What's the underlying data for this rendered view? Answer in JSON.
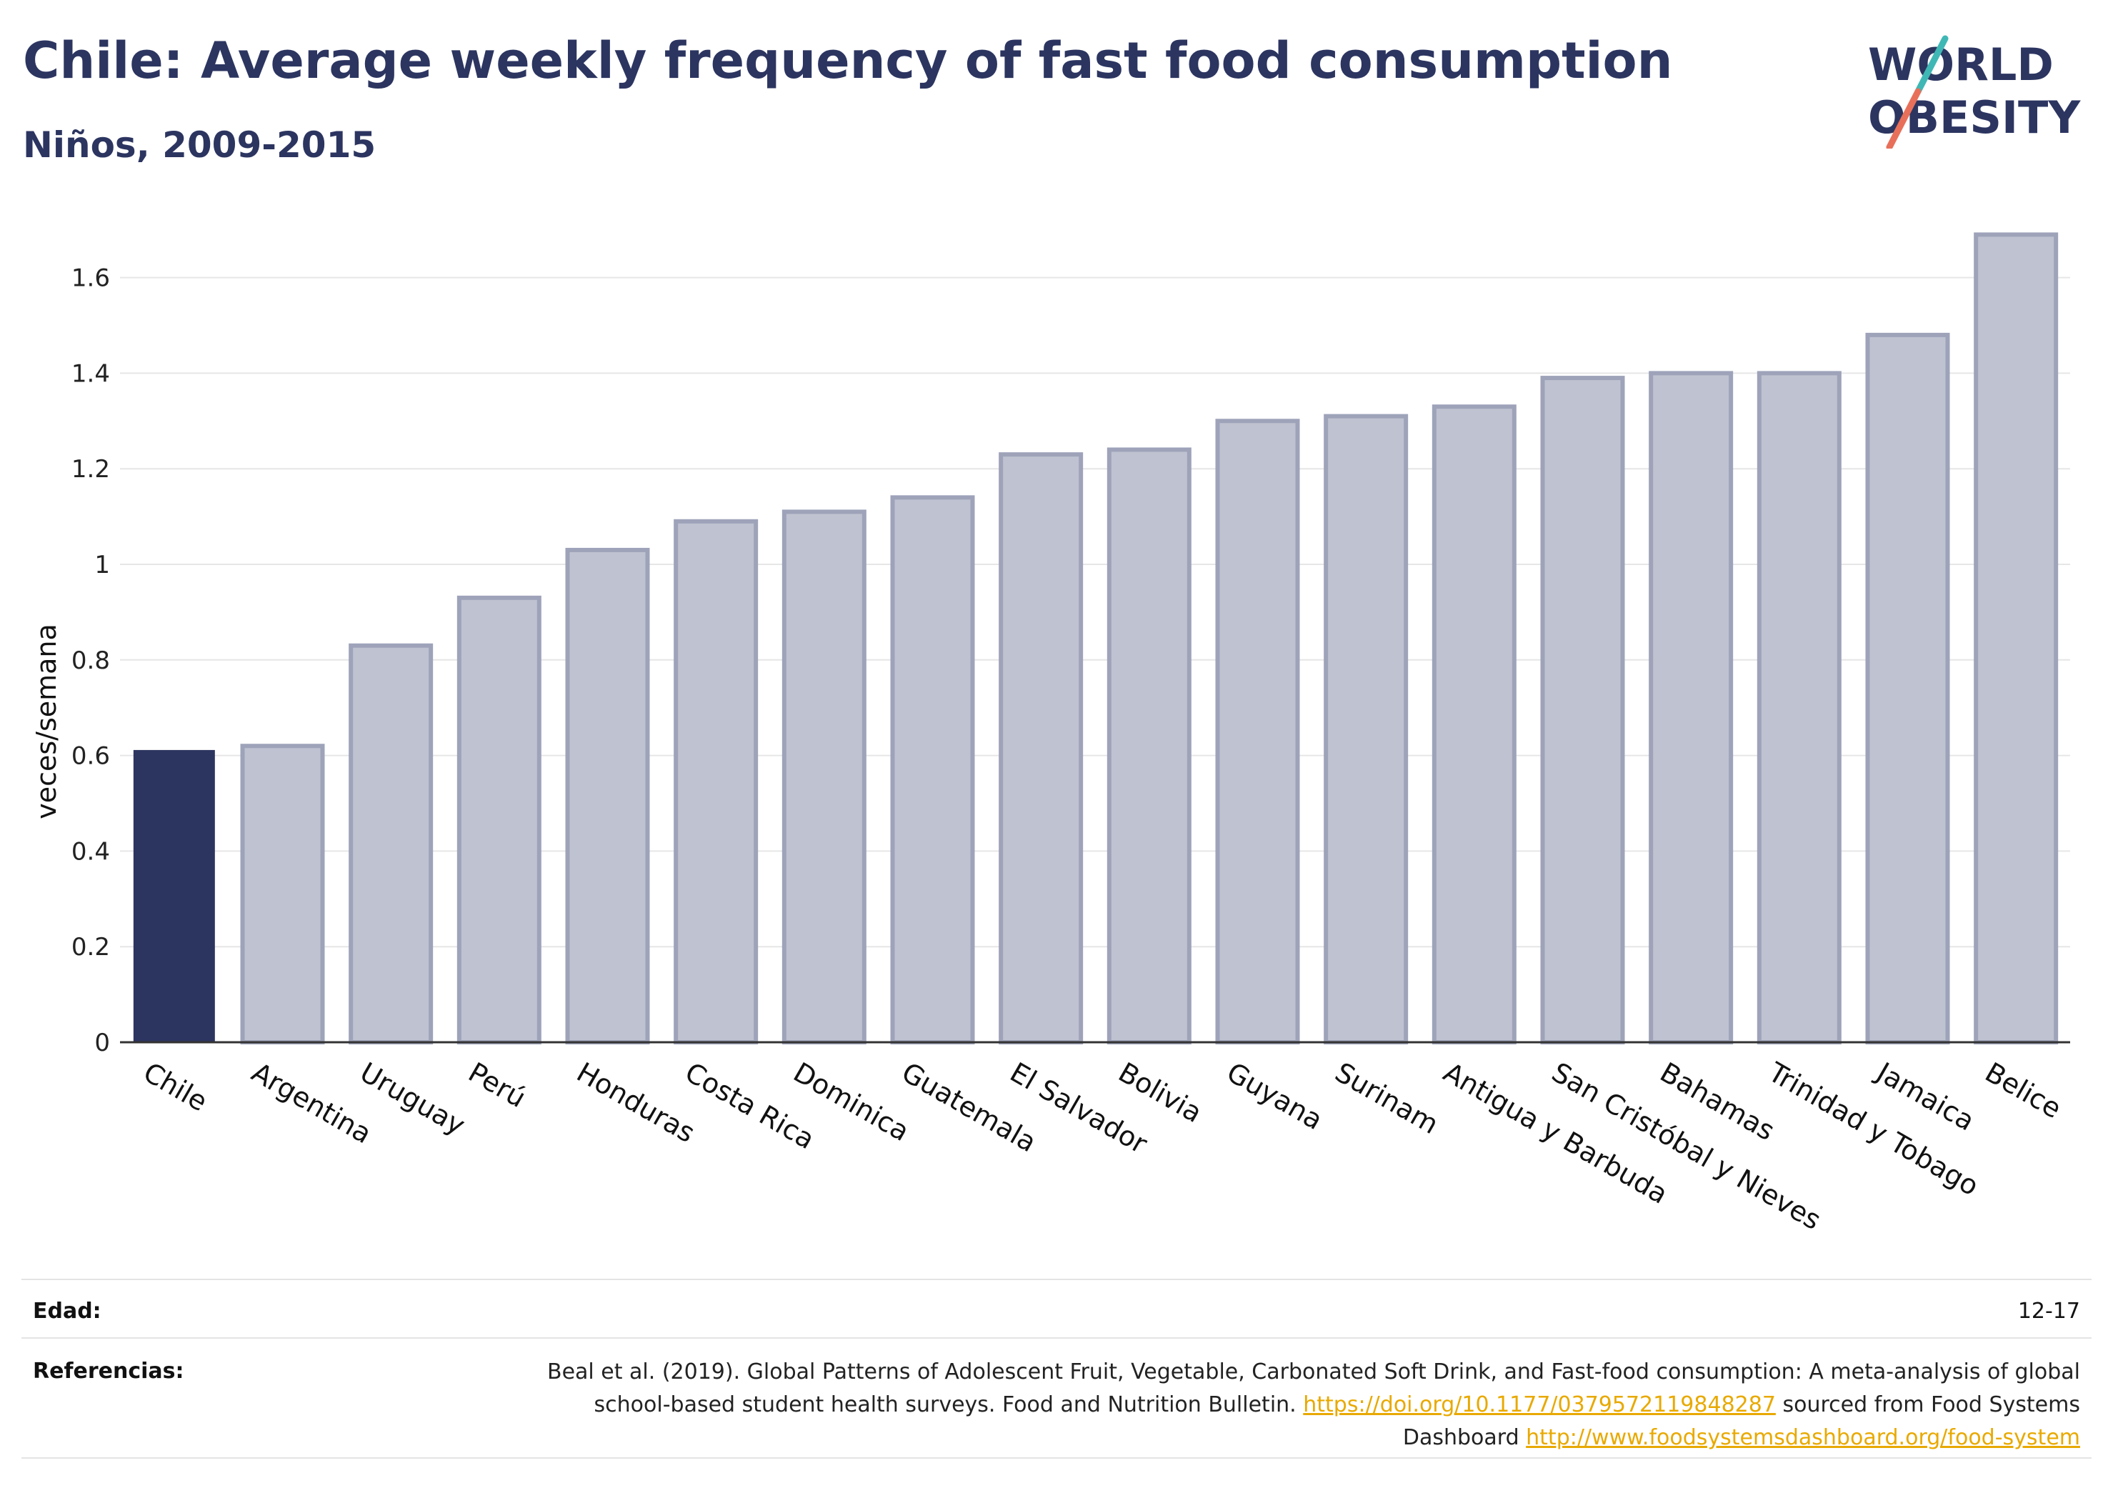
{
  "header": {
    "title": "Chile: Average weekly frequency of fast food consumption",
    "subtitle": "Niños, 2009-2015"
  },
  "logo": {
    "line1": "WORLD",
    "line2": "OBESITY",
    "accent_teal": "#3fb8b5",
    "accent_coral": "#e8705a"
  },
  "colors": {
    "highlight": "#2c3560",
    "bar_fill": "#bfc2d0",
    "bar_stroke": "#9ea3ba",
    "grid": "#e6e6e6"
  },
  "chart_data": {
    "type": "bar",
    "categories": [
      "Chile",
      "Argentina",
      "Uruguay",
      "Perú",
      "Honduras",
      "Costa Rica",
      "Dominica",
      "Guatemala",
      "El Salvador",
      "Bolivia",
      "Guyana",
      "Surinam",
      "Antigua y Barbuda",
      "San Cristóbal y Nieves",
      "Bahamas",
      "Trinidad y Tobago",
      "Jamaica",
      "Belice"
    ],
    "values": [
      0.61,
      0.62,
      0.83,
      0.93,
      1.03,
      1.09,
      1.11,
      1.14,
      1.23,
      1.24,
      1.3,
      1.31,
      1.33,
      1.39,
      1.4,
      1.4,
      1.48,
      1.69
    ],
    "highlight": "Chile",
    "ylabel": "veces/semana",
    "ylim": [
      0,
      1.7
    ],
    "yticks": [
      0,
      0.2,
      0.4,
      0.6,
      0.8,
      1,
      1.2,
      1.4,
      1.6
    ],
    "ytick_labels": [
      "0",
      "0.2",
      "0.4",
      "0.6",
      "0.8",
      "1",
      "1.2",
      "1.4",
      "1.6"
    ],
    "grid": true,
    "legend": "none"
  },
  "footer": {
    "age_label": "Edad:",
    "age_value": "12-17",
    "refs_label": "Referencias:",
    "refs_text1": "Beal et al. (2019). Global Patterns of Adolescent Fruit, Vegetable, Carbonated Soft Drink, and Fast-food consumption: A meta-analysis of global school-based student health surveys. Food and Nutrition Bulletin. ",
    "refs_link1": "https://doi.org/10.1177/0379572119848287",
    "refs_text2": " sourced from Food Systems Dashboard ",
    "refs_link2": "http://www.foodsystemsdashboard.org/food-system"
  }
}
